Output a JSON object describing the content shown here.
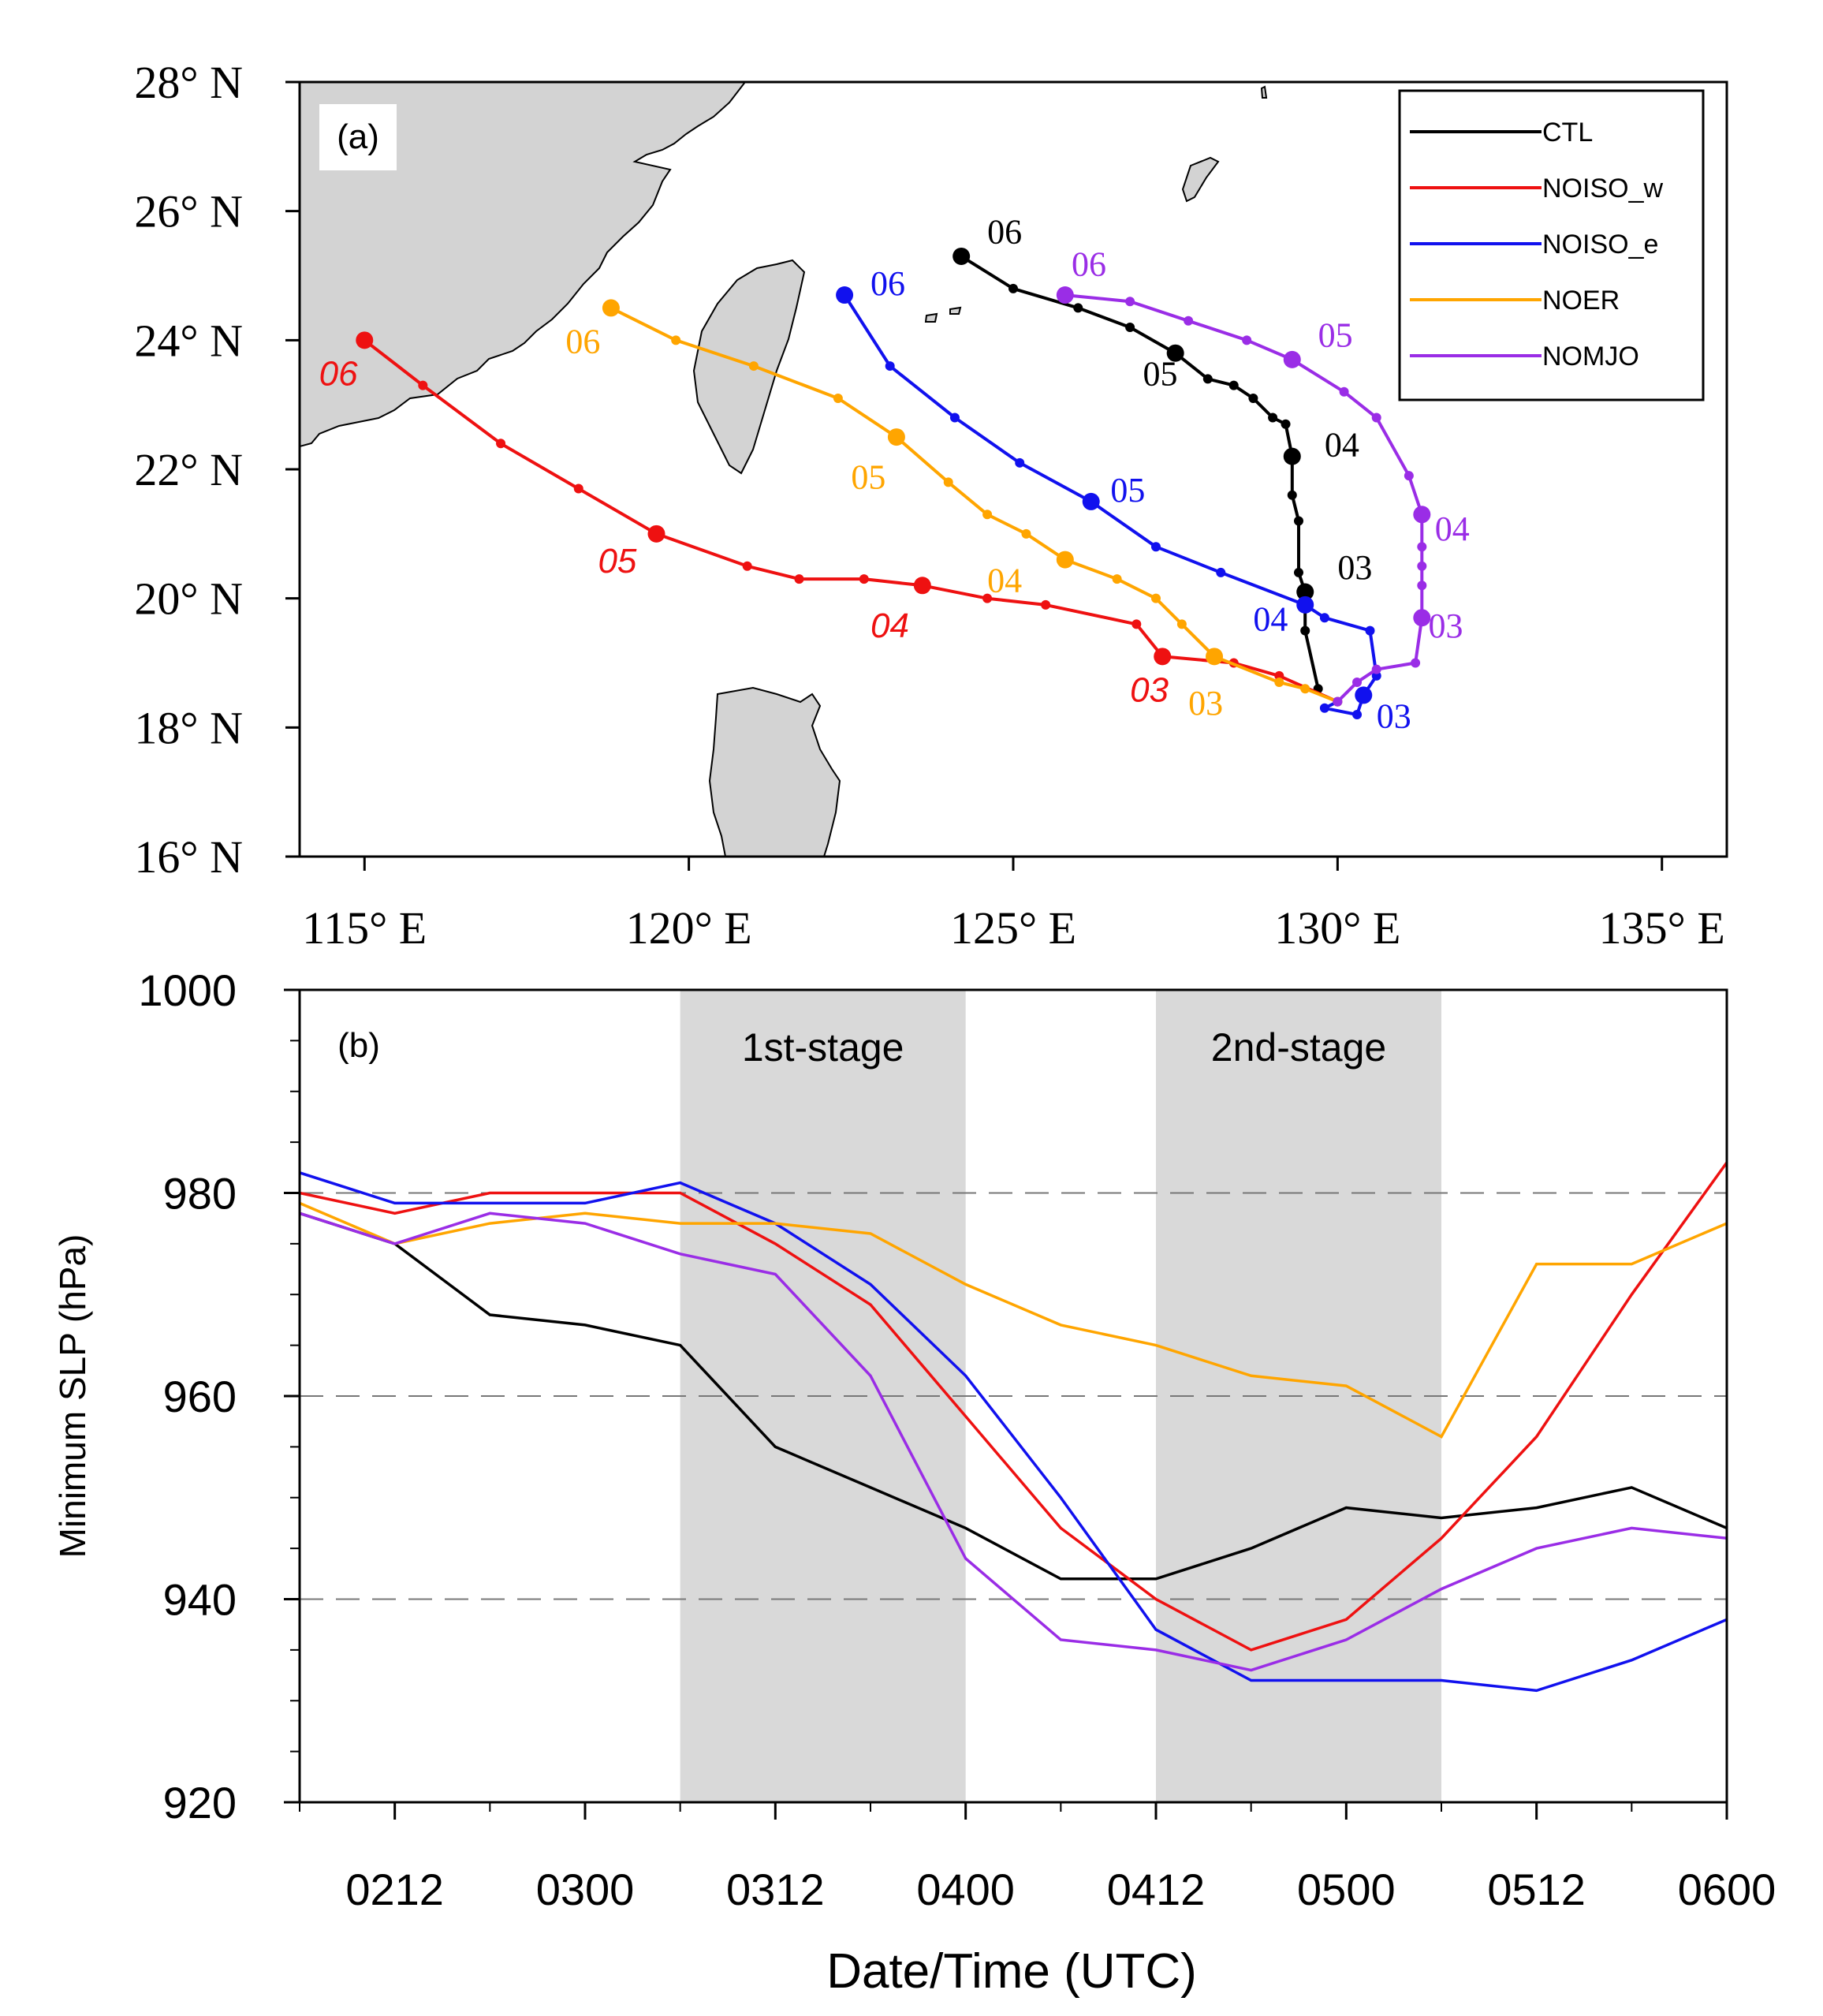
{
  "colors": {
    "CTL": "#000000",
    "NOISO_w": "#ee1111",
    "NOISO_e": "#1111ee",
    "NOER": "#ffa500",
    "NOMJO": "#9a2de6",
    "land": "#d3d3d3",
    "stage_shade": "#d9d9d9"
  },
  "chart_data": [
    {
      "type": "line",
      "panel_label": "(a)",
      "title": "",
      "xlabel": "",
      "ylabel": "",
      "xlim": [
        114,
        136
      ],
      "ylim": [
        16,
        28
      ],
      "x_ticks": [
        {
          "value": 115,
          "label": "115° E"
        },
        {
          "value": 120,
          "label": "120° E"
        },
        {
          "value": 125,
          "label": "125° E"
        },
        {
          "value": 130,
          "label": "130° E"
        },
        {
          "value": 135,
          "label": "135° E"
        }
      ],
      "y_ticks": [
        {
          "value": 16,
          "label": "16° N"
        },
        {
          "value": 18,
          "label": "18° N"
        },
        {
          "value": 20,
          "label": "20° N"
        },
        {
          "value": 22,
          "label": "22° N"
        },
        {
          "value": 24,
          "label": "24° N"
        },
        {
          "value": 26,
          "label": "26° N"
        },
        {
          "value": 28,
          "label": "28° N"
        }
      ],
      "legend_position": "top-right",
      "series": [
        {
          "name": "CTL",
          "points": [
            [
              129.7,
              18.6
            ],
            [
              129.5,
              19.5
            ],
            [
              129.5,
              20.1
            ],
            [
              129.4,
              20.4
            ],
            [
              129.4,
              21.2
            ],
            [
              129.3,
              21.6
            ],
            [
              129.3,
              22.2
            ],
            [
              129.2,
              22.7
            ],
            [
              129.0,
              22.8
            ],
            [
              128.7,
              23.1
            ],
            [
              128.4,
              23.3
            ],
            [
              128.0,
              23.4
            ],
            [
              127.5,
              23.8
            ],
            [
              126.8,
              24.2
            ],
            [
              126.0,
              24.5
            ],
            [
              125.0,
              24.8
            ],
            [
              124.2,
              25.3
            ]
          ],
          "big_markers": [
            [
              129.5,
              20.1
            ],
            [
              129.3,
              22.2
            ],
            [
              127.5,
              23.8
            ],
            [
              124.2,
              25.3
            ]
          ],
          "labels": [
            {
              "text": "03",
              "at": [
                130.0,
                20.3
              ]
            },
            {
              "text": "04",
              "at": [
                129.8,
                22.2
              ]
            },
            {
              "text": "05",
              "at": [
                127.0,
                23.3
              ]
            },
            {
              "text": "06",
              "at": [
                124.6,
                25.5
              ]
            }
          ]
        },
        {
          "name": "NOISO_w",
          "points": [
            [
              130.0,
              18.4
            ],
            [
              129.1,
              18.8
            ],
            [
              128.4,
              19.0
            ],
            [
              127.3,
              19.1
            ],
            [
              126.9,
              19.6
            ],
            [
              125.5,
              19.9
            ],
            [
              124.6,
              20.0
            ],
            [
              123.6,
              20.2
            ],
            [
              122.7,
              20.3
            ],
            [
              121.7,
              20.3
            ],
            [
              120.9,
              20.5
            ],
            [
              119.5,
              21.0
            ],
            [
              118.3,
              21.7
            ],
            [
              117.1,
              22.4
            ],
            [
              115.9,
              23.3
            ],
            [
              115.0,
              24.0
            ]
          ],
          "big_markers": [
            [
              127.3,
              19.1
            ],
            [
              123.6,
              20.2
            ],
            [
              119.5,
              21.0
            ],
            [
              115.0,
              24.0
            ]
          ],
          "labels": [
            {
              "text": "03",
              "at": [
                126.8,
                18.4
              ]
            },
            {
              "text": "04",
              "at": [
                122.8,
                19.4
              ]
            },
            {
              "text": "05",
              "at": [
                118.6,
                20.4
              ]
            },
            {
              "text": "06",
              "at": [
                114.3,
                23.3
              ]
            }
          ]
        },
        {
          "name": "NOISO_e",
          "points": [
            [
              130.0,
              18.4
            ],
            [
              129.8,
              18.3
            ],
            [
              130.3,
              18.2
            ],
            [
              130.4,
              18.5
            ],
            [
              130.6,
              18.8
            ],
            [
              130.5,
              19.5
            ],
            [
              129.8,
              19.7
            ],
            [
              129.5,
              19.9
            ],
            [
              128.2,
              20.4
            ],
            [
              127.2,
              20.8
            ],
            [
              126.2,
              21.5
            ],
            [
              125.1,
              22.1
            ],
            [
              124.1,
              22.8
            ],
            [
              123.1,
              23.6
            ],
            [
              122.4,
              24.7
            ]
          ],
          "big_markers": [
            [
              130.4,
              18.5
            ],
            [
              129.5,
              19.9
            ],
            [
              126.2,
              21.5
            ],
            [
              122.4,
              24.7
            ]
          ],
          "labels": [
            {
              "text": "03",
              "at": [
                130.6,
                18.0
              ]
            },
            {
              "text": "04",
              "at": [
                128.7,
                19.5
              ]
            },
            {
              "text": "05",
              "at": [
                126.5,
                21.5
              ]
            },
            {
              "text": "06",
              "at": [
                122.8,
                24.7
              ]
            }
          ]
        },
        {
          "name": "NOER",
          "points": [
            [
              130.0,
              18.4
            ],
            [
              129.5,
              18.6
            ],
            [
              129.1,
              18.7
            ],
            [
              128.1,
              19.1
            ],
            [
              127.6,
              19.6
            ],
            [
              127.2,
              20.0
            ],
            [
              126.6,
              20.3
            ],
            [
              125.8,
              20.6
            ],
            [
              125.2,
              21.0
            ],
            [
              124.6,
              21.3
            ],
            [
              124.0,
              21.8
            ],
            [
              123.2,
              22.5
            ],
            [
              122.3,
              23.1
            ],
            [
              121.0,
              23.6
            ],
            [
              119.8,
              24.0
            ],
            [
              118.8,
              24.5
            ]
          ],
          "big_markers": [
            [
              128.1,
              19.1
            ],
            [
              125.8,
              20.6
            ],
            [
              123.2,
              22.5
            ],
            [
              118.8,
              24.5
            ]
          ],
          "labels": [
            {
              "text": "03",
              "at": [
                127.7,
                18.2
              ]
            },
            {
              "text": "04",
              "at": [
                124.6,
                20.1
              ]
            },
            {
              "text": "05",
              "at": [
                122.5,
                21.7
              ]
            },
            {
              "text": "06",
              "at": [
                118.1,
                23.8
              ]
            }
          ]
        },
        {
          "name": "NOMJO",
          "points": [
            [
              130.0,
              18.4
            ],
            [
              130.3,
              18.7
            ],
            [
              130.6,
              18.9
            ],
            [
              131.2,
              19.0
            ],
            [
              131.3,
              19.7
            ],
            [
              131.3,
              20.2
            ],
            [
              131.3,
              20.5
            ],
            [
              131.3,
              20.8
            ],
            [
              131.3,
              21.3
            ],
            [
              131.1,
              21.9
            ],
            [
              130.6,
              22.8
            ],
            [
              130.1,
              23.2
            ],
            [
              129.3,
              23.7
            ],
            [
              128.6,
              24.0
            ],
            [
              127.7,
              24.3
            ],
            [
              126.8,
              24.6
            ],
            [
              125.8,
              24.7
            ]
          ],
          "big_markers": [
            [
              131.3,
              19.7
            ],
            [
              131.3,
              21.3
            ],
            [
              129.3,
              23.7
            ],
            [
              125.8,
              24.7
            ]
          ],
          "labels": [
            {
              "text": "03",
              "at": [
                131.4,
                19.4
              ]
            },
            {
              "text": "04",
              "at": [
                131.5,
                20.9
              ]
            },
            {
              "text": "05",
              "at": [
                129.7,
                23.9
              ]
            },
            {
              "text": "06",
              "at": [
                125.9,
                25.0
              ]
            }
          ]
        }
      ]
    },
    {
      "type": "line",
      "panel_label": "(b)",
      "title": "",
      "xlabel": "Date/Time (UTC)",
      "ylabel": "Minimum SLP (hPa)",
      "ylim": [
        920,
        1000
      ],
      "y_ticks": [
        920,
        940,
        960,
        980,
        1000
      ],
      "x_ticks": [
        "0212",
        "0300",
        "0312",
        "0400",
        "0412",
        "0500",
        "0512",
        "0600"
      ],
      "x_range_hours": [
        -6,
        84
      ],
      "grid_lines": [
        940,
        960,
        980
      ],
      "shaded_stages": [
        {
          "label": "1st-stage",
          "from_hour": 18,
          "to_hour": 36
        },
        {
          "label": "2nd-stage",
          "from_hour": 48,
          "to_hour": 66
        }
      ],
      "x_hours": [
        -6,
        0,
        6,
        12,
        18,
        24,
        30,
        36,
        42,
        48,
        54,
        60,
        66,
        72,
        78,
        84
      ],
      "series": [
        {
          "name": "CTL",
          "values": [
            978,
            975,
            968,
            967,
            965,
            955,
            951,
            947,
            942,
            942,
            945,
            949,
            948,
            949,
            951,
            947
          ]
        },
        {
          "name": "NOISO_w",
          "values": [
            980,
            978,
            980,
            980,
            980,
            975,
            969,
            958,
            947,
            940,
            935,
            938,
            946,
            956,
            970,
            983
          ]
        },
        {
          "name": "NOISO_e",
          "values": [
            982,
            979,
            979,
            979,
            981,
            977,
            971,
            962,
            950,
            937,
            932,
            932,
            932,
            931,
            934,
            938
          ]
        },
        {
          "name": "NOER",
          "values": [
            979,
            975,
            977,
            978,
            977,
            977,
            976,
            971,
            967,
            965,
            962,
            961,
            956,
            973,
            973,
            977
          ]
        },
        {
          "name": "NOMJO",
          "values": [
            978,
            975,
            978,
            977,
            974,
            972,
            962,
            944,
            936,
            935,
            933,
            936,
            941,
            945,
            947,
            946
          ]
        }
      ]
    }
  ]
}
